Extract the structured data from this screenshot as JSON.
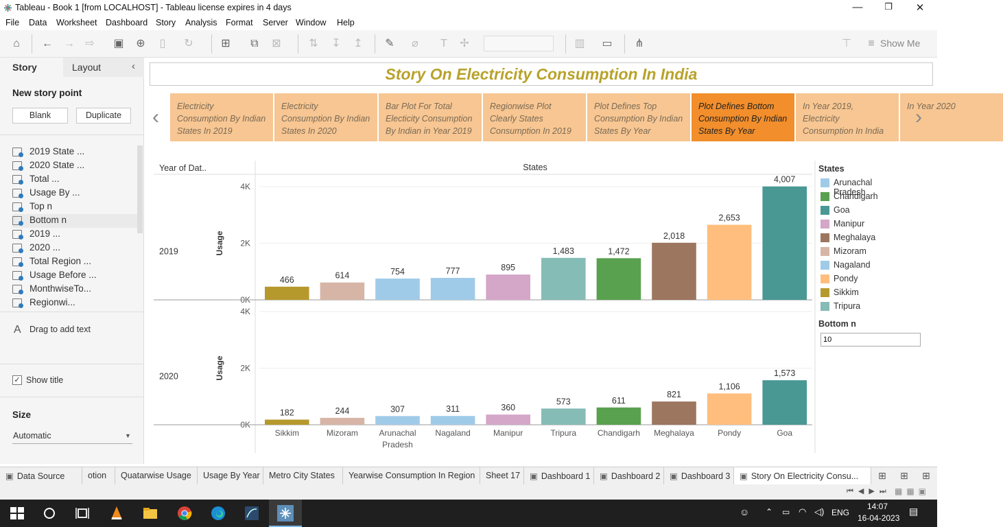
{
  "window": {
    "title": "Tableau - Book 1 [from LOCALHOST] - Tableau license expires in 4 days"
  },
  "menu": [
    "File",
    "Data",
    "Worksheet",
    "Dashboard",
    "Story",
    "Analysis",
    "Format",
    "Server",
    "Window",
    "Help"
  ],
  "toolbar": {
    "show_me": "Show Me"
  },
  "left_panel": {
    "tab_story": "Story",
    "tab_layout": "Layout",
    "new_story_point": "New story point",
    "blank": "Blank",
    "duplicate": "Duplicate",
    "sheets": [
      "2019 State ...",
      "2020 State ...",
      "Total ...",
      "Usage By ...",
      "Top n",
      "Bottom n",
      "2019 ...",
      "2020 ...",
      "Total Region ...",
      "Usage Before ...",
      "MonthwiseTo...",
      "Regionwi..."
    ],
    "drag_text": "Drag to add text",
    "show_title": "Show title",
    "size_label": "Size",
    "size_value": "Automatic"
  },
  "story": {
    "title": "Story On Electricity Consumption In India",
    "points": [
      "Electricity Consumption By Indian States In 2019",
      "Electricity Consumption By Indian States In 2020",
      "Bar Plot For Total Electicity Consumption By Indian in Year 2019",
      "Regionwise Plot Clearly States Consumption In 2019",
      "Plot Defines Top Consumption By Indian States By Year",
      "Plot Defines Bottom Consumption By Indian States By Year",
      "In Year 2019, Electricity Consumption In India",
      "In Year 2020"
    ],
    "active_index": 5
  },
  "chart_headers": {
    "row_header": "Year of Dat..",
    "col_header": "States",
    "y_axis": "Usage"
  },
  "legend": {
    "title": "States",
    "items": [
      {
        "name": "Arunachal Pradesh",
        "color": "#a0cbe8"
      },
      {
        "name": "Chandigarh",
        "color": "#59a14f"
      },
      {
        "name": "Goa",
        "color": "#499894"
      },
      {
        "name": "Manipur",
        "color": "#d4a6c8"
      },
      {
        "name": "Meghalaya",
        "color": "#9d7660"
      },
      {
        "name": "Mizoram",
        "color": "#d7b5a6"
      },
      {
        "name": "Nagaland",
        "color": "#a0cbe8"
      },
      {
        "name": "Pondy",
        "color": "#ffbe7d"
      },
      {
        "name": "Sikkim",
        "color": "#b6992d"
      },
      {
        "name": "Tripura",
        "color": "#86bcb6"
      }
    ]
  },
  "filter": {
    "label": "Bottom n",
    "value": "10"
  },
  "chart_data": {
    "type": "bar",
    "categories": [
      "Sikkim",
      "Mizoram",
      "Arunachal Pradesh",
      "Nagaland",
      "Manipur",
      "Tripura",
      "Chandigarh",
      "Meghalaya",
      "Pondy",
      "Goa"
    ],
    "category_labels": [
      [
        "Sikkim"
      ],
      [
        "Mizoram"
      ],
      [
        "Arunachal",
        "Pradesh"
      ],
      [
        "Nagaland"
      ],
      [
        "Manipur"
      ],
      [
        "Tripura"
      ],
      [
        "Chandigarh"
      ],
      [
        "Meghalaya"
      ],
      [
        "Pondy"
      ],
      [
        "Goa"
      ]
    ],
    "colors": [
      "#b6992d",
      "#d7b5a6",
      "#a0cbe8",
      "#a0cbe8",
      "#d4a6c8",
      "#86bcb6",
      "#59a14f",
      "#9d7660",
      "#ffbe7d",
      "#499894"
    ],
    "series": [
      {
        "name": "2019",
        "values": [
          466,
          614,
          754,
          777,
          895,
          1483,
          1472,
          2018,
          2653,
          4007
        ],
        "labels": [
          "466",
          "614",
          "754",
          "777",
          "895",
          "1,483",
          "1,472",
          "2,018",
          "2,653",
          "4,007"
        ]
      },
      {
        "name": "2020",
        "values": [
          182,
          244,
          307,
          311,
          360,
          573,
          611,
          821,
          1106,
          1573
        ],
        "labels": [
          "182",
          "244",
          "307",
          "311",
          "360",
          "573",
          "611",
          "821",
          "1,106",
          "1,573"
        ]
      }
    ],
    "ylabel": "Usage",
    "ylim": [
      0,
      4000
    ],
    "yticks": [
      "0K",
      "2K",
      "4K"
    ]
  },
  "bottom_tabs": [
    "Data Source",
    "otion",
    "Quatarwise Usage",
    "Usage By Year",
    "Metro City States",
    "Yearwise Consumption In Region",
    "Sheet 17",
    "Dashboard 1",
    "Dashboard 2",
    "Dashboard 3",
    "Story On Electricity Consu..."
  ],
  "taskbar": {
    "time": "14:07",
    "date": "16-04-2023",
    "lang": "ENG"
  }
}
